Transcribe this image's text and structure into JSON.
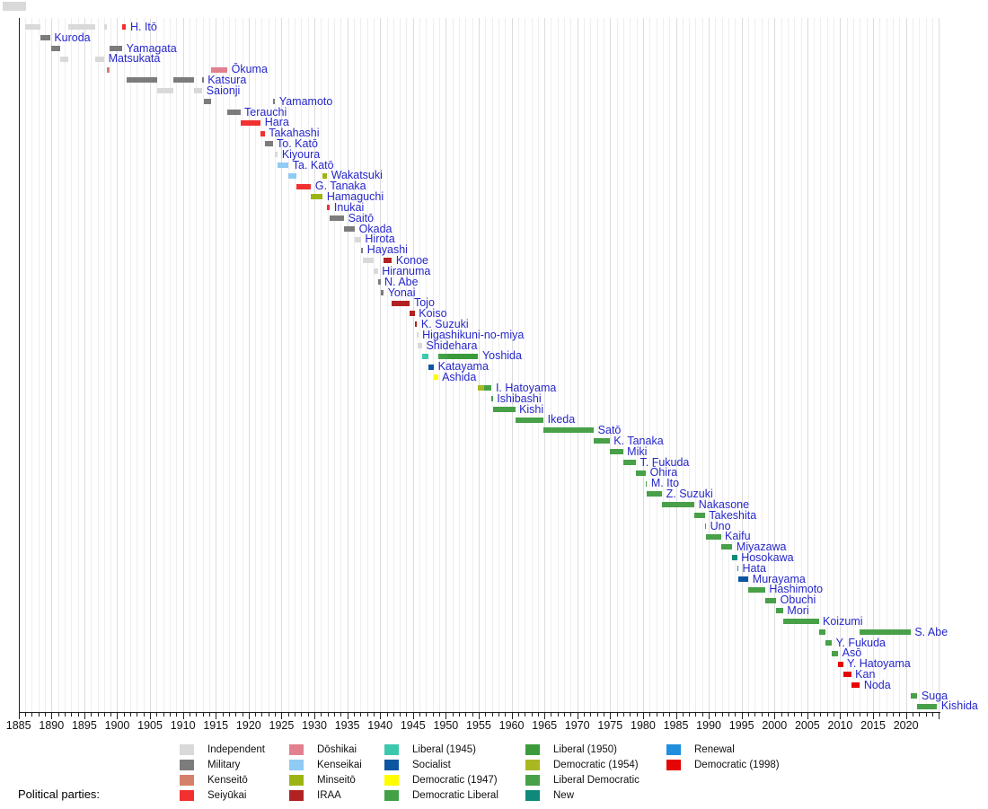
{
  "legend": {
    "heading": "Political parties:",
    "columns": [
      [
        "independent",
        "military",
        "kenseito",
        "seiyukai"
      ],
      [
        "doshikai",
        "kenseikai",
        "minseito",
        "iraa"
      ],
      [
        "liberal1945",
        "socialist",
        "democratic1947",
        "democratic_liberal"
      ],
      [
        "liberal1950",
        "democratic1954",
        "liberal_democratic",
        "new"
      ],
      [
        "renewal",
        "democratic1998"
      ]
    ]
  },
  "parties": {
    "independent": {
      "label": "Independent",
      "color": "#d9d9d9"
    },
    "military": {
      "label": "Military",
      "color": "#7c7c7c"
    },
    "kenseito": {
      "label": "Kenseitō",
      "color": "#d5806b"
    },
    "seiyukai": {
      "label": "Seiyūkai",
      "color": "#f23030"
    },
    "doshikai": {
      "label": "Dōshikai",
      "color": "#e2808f"
    },
    "kenseikai": {
      "label": "Kenseikai",
      "color": "#90cbf3"
    },
    "minseito": {
      "label": "Minseitō",
      "color": "#9cb414"
    },
    "iraa": {
      "label": "IRAA",
      "color": "#b22222"
    },
    "liberal1945": {
      "label": "Liberal (1945)",
      "color": "#3dc8ad"
    },
    "socialist": {
      "label": "Socialist",
      "color": "#0c55a0"
    },
    "democratic1947": {
      "label": "Democratic (1947)",
      "color": "#fdfd00"
    },
    "democratic_liberal": {
      "label": "Democratic Liberal",
      "color": "#43a046"
    },
    "liberal1950": {
      "label": "Liberal (1950)",
      "color": "#3b9b3b"
    },
    "democratic1954": {
      "label": "Democratic (1954)",
      "color": "#a9b821"
    },
    "liberal_democratic": {
      "label": "Liberal Democratic",
      "color": "#48a048"
    },
    "new": {
      "label": "New",
      "color": "#0f8a7a"
    },
    "renewal": {
      "label": "Renewal",
      "color": "#1f8fdd"
    },
    "democratic1998": {
      "label": "Democratic (1998)",
      "color": "#e60505"
    }
  },
  "chart_data": {
    "type": "timeline",
    "x_range": [
      1885,
      2025.3
    ],
    "x_ticks": [
      1885,
      1890,
      1895,
      1900,
      1905,
      1910,
      1915,
      1920,
      1925,
      1930,
      1935,
      1940,
      1945,
      1950,
      1955,
      1960,
      1965,
      1970,
      1975,
      1980,
      1985,
      1990,
      1995,
      2000,
      2005,
      2010,
      2015,
      2020
    ],
    "grid": true,
    "rows": [
      {
        "name": "H. Itō",
        "segments": [
          [
            1885.96,
            1888.33,
            "independent"
          ],
          [
            1892.61,
            1896.66,
            "independent"
          ],
          [
            1898.04,
            1898.5,
            "independent"
          ],
          [
            1900.79,
            1901.37,
            "seiyukai"
          ]
        ]
      },
      {
        "name": "Kuroda",
        "segments": [
          [
            1888.33,
            1889.8,
            "military"
          ]
        ]
      },
      {
        "name": "Yamagata",
        "segments": [
          [
            1889.94,
            1891.35,
            "military"
          ],
          [
            1898.85,
            1900.78,
            "military"
          ]
        ]
      },
      {
        "name": "Matsukata",
        "segments": [
          [
            1891.35,
            1892.61,
            "independent"
          ],
          [
            1896.71,
            1898.04,
            "independent"
          ]
        ]
      },
      {
        "name": "Ōkuma",
        "segments": [
          [
            1898.5,
            1898.85,
            "kenseito"
          ],
          [
            1914.28,
            1916.76,
            "doshikai"
          ]
        ]
      },
      {
        "name": "Katsura",
        "segments": [
          [
            1901.42,
            1906.02,
            "military"
          ],
          [
            1908.54,
            1911.66,
            "military"
          ],
          [
            1912.96,
            1913.15,
            "military"
          ]
        ]
      },
      {
        "name": "Saionji",
        "segments": [
          [
            1906.02,
            1908.54,
            "independent"
          ],
          [
            1911.66,
            1912.96,
            "independent"
          ]
        ]
      },
      {
        "name": "Yamamoto",
        "segments": [
          [
            1913.15,
            1914.28,
            "military"
          ],
          [
            1923.67,
            1924.03,
            "military"
          ]
        ]
      },
      {
        "name": "Terauchi",
        "segments": [
          [
            1916.76,
            1918.73,
            "military"
          ]
        ]
      },
      {
        "name": "Hara",
        "segments": [
          [
            1918.73,
            1921.84,
            "seiyukai"
          ]
        ]
      },
      {
        "name": "Takahashi",
        "segments": [
          [
            1921.84,
            1922.45,
            "seiyukai"
          ]
        ]
      },
      {
        "name": "To. Katō",
        "segments": [
          [
            1922.45,
            1923.65,
            "military"
          ]
        ]
      },
      {
        "name": "Kiyoura",
        "segments": [
          [
            1924.03,
            1924.44,
            "independent"
          ]
        ]
      },
      {
        "name": "Ta. Katō",
        "segments": [
          [
            1924.44,
            1926.07,
            "kenseikai"
          ]
        ]
      },
      {
        "name": "Wakatsuki",
        "segments": [
          [
            1926.07,
            1927.3,
            "kenseikai"
          ],
          [
            1931.28,
            1931.94,
            "minseito"
          ]
        ]
      },
      {
        "name": "G. Tanaka",
        "segments": [
          [
            1927.3,
            1929.5,
            "seiyukai"
          ]
        ]
      },
      {
        "name": "Hamaguchi",
        "segments": [
          [
            1929.5,
            1931.28,
            "minseito"
          ]
        ]
      },
      {
        "name": "Inukai",
        "segments": [
          [
            1931.94,
            1932.38,
            "seiyukai"
          ]
        ]
      },
      {
        "name": "Saitō",
        "segments": [
          [
            1932.38,
            1934.52,
            "military"
          ]
        ]
      },
      {
        "name": "Okada",
        "segments": [
          [
            1934.52,
            1936.17,
            "military"
          ]
        ]
      },
      {
        "name": "Hirota",
        "segments": [
          [
            1936.17,
            1937.09,
            "independent"
          ]
        ]
      },
      {
        "name": "Hayashi",
        "segments": [
          [
            1937.09,
            1937.42,
            "military"
          ]
        ]
      },
      {
        "name": "Konoe",
        "segments": [
          [
            1937.42,
            1939.01,
            "independent"
          ],
          [
            1940.55,
            1941.8,
            "iraa"
          ]
        ]
      },
      {
        "name": "Hiranuma",
        "segments": [
          [
            1939.01,
            1939.66,
            "independent"
          ]
        ]
      },
      {
        "name": "N. Abe",
        "segments": [
          [
            1939.66,
            1940.05,
            "military"
          ]
        ]
      },
      {
        "name": "Yonai",
        "segments": [
          [
            1940.05,
            1940.55,
            "military"
          ]
        ]
      },
      {
        "name": "Tojo",
        "segments": [
          [
            1941.8,
            1944.55,
            "iraa"
          ]
        ]
      },
      {
        "name": "Koiso",
        "segments": [
          [
            1944.55,
            1945.27,
            "iraa"
          ]
        ]
      },
      {
        "name": "K. Suzuki",
        "segments": [
          [
            1945.27,
            1945.63,
            "iraa"
          ]
        ]
      },
      {
        "name": "Higashikuni-no-miya",
        "segments": [
          [
            1945.63,
            1945.75,
            "independent"
          ]
        ]
      },
      {
        "name": "Shidehara",
        "segments": [
          [
            1945.75,
            1946.39,
            "independent"
          ]
        ]
      },
      {
        "name": "Yoshida",
        "segments": [
          [
            1946.39,
            1947.39,
            "liberal1945"
          ],
          [
            1948.8,
            1950.2,
            "democratic_liberal"
          ],
          [
            1950.2,
            1954.93,
            "liberal1950"
          ]
        ]
      },
      {
        "name": "Katayama",
        "segments": [
          [
            1947.39,
            1948.19,
            "socialist"
          ]
        ]
      },
      {
        "name": "Ashida",
        "segments": [
          [
            1948.19,
            1948.8,
            "democratic1947"
          ]
        ]
      },
      {
        "name": "I. Hatoyama",
        "segments": [
          [
            1954.93,
            1955.89,
            "democratic1954"
          ],
          [
            1955.89,
            1956.98,
            "liberal_democratic"
          ]
        ]
      },
      {
        "name": "Ishibashi",
        "segments": [
          [
            1956.98,
            1957.16,
            "liberal_democratic"
          ]
        ]
      },
      {
        "name": "Kishi",
        "segments": [
          [
            1957.16,
            1960.55,
            "liberal_democratic"
          ]
        ]
      },
      {
        "name": "Ikeda",
        "segments": [
          [
            1960.55,
            1964.86,
            "liberal_democratic"
          ]
        ]
      },
      {
        "name": "Satō",
        "segments": [
          [
            1964.86,
            1972.52,
            "liberal_democratic"
          ]
        ]
      },
      {
        "name": "K. Tanaka",
        "segments": [
          [
            1972.52,
            1974.93,
            "liberal_democratic"
          ]
        ]
      },
      {
        "name": "Miki",
        "segments": [
          [
            1974.93,
            1976.96,
            "liberal_democratic"
          ]
        ]
      },
      {
        "name": "T. Fukuda",
        "segments": [
          [
            1976.96,
            1978.92,
            "liberal_democratic"
          ]
        ]
      },
      {
        "name": "Ōhira",
        "segments": [
          [
            1978.92,
            1980.44,
            "liberal_democratic"
          ]
        ]
      },
      {
        "name": "M. Ito",
        "segments": [
          [
            1980.44,
            1980.55,
            "liberal_democratic"
          ]
        ]
      },
      {
        "name": "Z. Suzuki",
        "segments": [
          [
            1980.55,
            1982.9,
            "liberal_democratic"
          ]
        ]
      },
      {
        "name": "Nakasone",
        "segments": [
          [
            1982.9,
            1987.84,
            "liberal_democratic"
          ]
        ]
      },
      {
        "name": "Takeshita",
        "segments": [
          [
            1987.84,
            1989.43,
            "liberal_democratic"
          ]
        ]
      },
      {
        "name": "Uno",
        "segments": [
          [
            1989.43,
            1989.6,
            "liberal_democratic"
          ]
        ]
      },
      {
        "name": "Kaifu",
        "segments": [
          [
            1989.6,
            1991.84,
            "liberal_democratic"
          ]
        ]
      },
      {
        "name": "Miyazawa",
        "segments": [
          [
            1991.84,
            1993.6,
            "liberal_democratic"
          ]
        ]
      },
      {
        "name": "Hosokawa",
        "segments": [
          [
            1993.6,
            1994.32,
            "new"
          ]
        ]
      },
      {
        "name": "Hata",
        "segments": [
          [
            1994.32,
            1994.5,
            "renewal"
          ]
        ]
      },
      {
        "name": "Murayama",
        "segments": [
          [
            1994.5,
            1996.04,
            "socialist"
          ]
        ]
      },
      {
        "name": "Hashimoto",
        "segments": [
          [
            1996.04,
            1998.58,
            "liberal_democratic"
          ]
        ]
      },
      {
        "name": "Obuchi",
        "segments": [
          [
            1998.58,
            2000.26,
            "liberal_democratic"
          ]
        ]
      },
      {
        "name": "Mori",
        "segments": [
          [
            2000.26,
            2001.32,
            "liberal_democratic"
          ]
        ]
      },
      {
        "name": "Koizumi",
        "segments": [
          [
            2001.32,
            2006.73,
            "liberal_democratic"
          ]
        ]
      },
      {
        "name": "S. Abe",
        "segments": [
          [
            2006.73,
            2007.73,
            "liberal_democratic"
          ],
          [
            2012.99,
            2020.71,
            "liberal_democratic"
          ]
        ]
      },
      {
        "name": "Y. Fukuda",
        "segments": [
          [
            2007.73,
            2008.73,
            "liberal_democratic"
          ]
        ]
      },
      {
        "name": "Asō",
        "segments": [
          [
            2008.73,
            2009.69,
            "liberal_democratic"
          ]
        ]
      },
      {
        "name": "Y. Hatoyama",
        "segments": [
          [
            2009.69,
            2010.43,
            "democratic1998"
          ]
        ]
      },
      {
        "name": "Kan",
        "segments": [
          [
            2010.43,
            2011.67,
            "democratic1998"
          ]
        ]
      },
      {
        "name": "Noda",
        "segments": [
          [
            2011.67,
            2012.99,
            "democratic1998"
          ]
        ]
      },
      {
        "name": "Suga",
        "segments": [
          [
            2020.71,
            2021.75,
            "liberal_democratic"
          ]
        ]
      },
      {
        "name": "Kishida",
        "segments": [
          [
            2021.75,
            2024.75,
            "liberal_democratic"
          ]
        ]
      }
    ]
  }
}
